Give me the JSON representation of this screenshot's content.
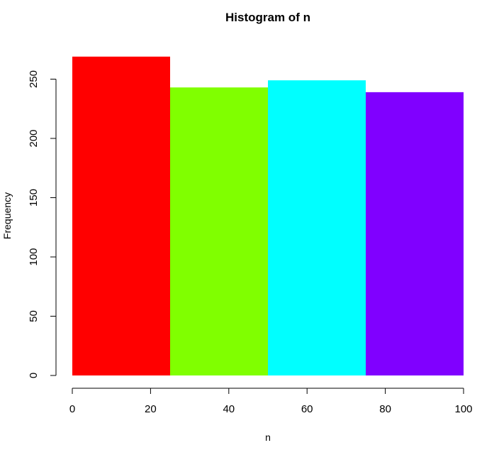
{
  "chart_data": {
    "type": "bar",
    "title": "Histogram of n",
    "xlabel": "n",
    "ylabel": "Frequency",
    "bins": [
      [
        0,
        25
      ],
      [
        25,
        50
      ],
      [
        50,
        75
      ],
      [
        75,
        100
      ]
    ],
    "values": [
      269,
      243,
      249,
      239
    ],
    "colors": [
      "#FF0000",
      "#80FF00",
      "#00FFFF",
      "#8000FF"
    ],
    "xlim": [
      0,
      100
    ],
    "ylim": [
      0,
      269
    ],
    "xticks": [
      0,
      20,
      40,
      60,
      80,
      100
    ],
    "yticks": [
      0,
      50,
      100,
      150,
      200,
      250
    ],
    "grid": false
  }
}
